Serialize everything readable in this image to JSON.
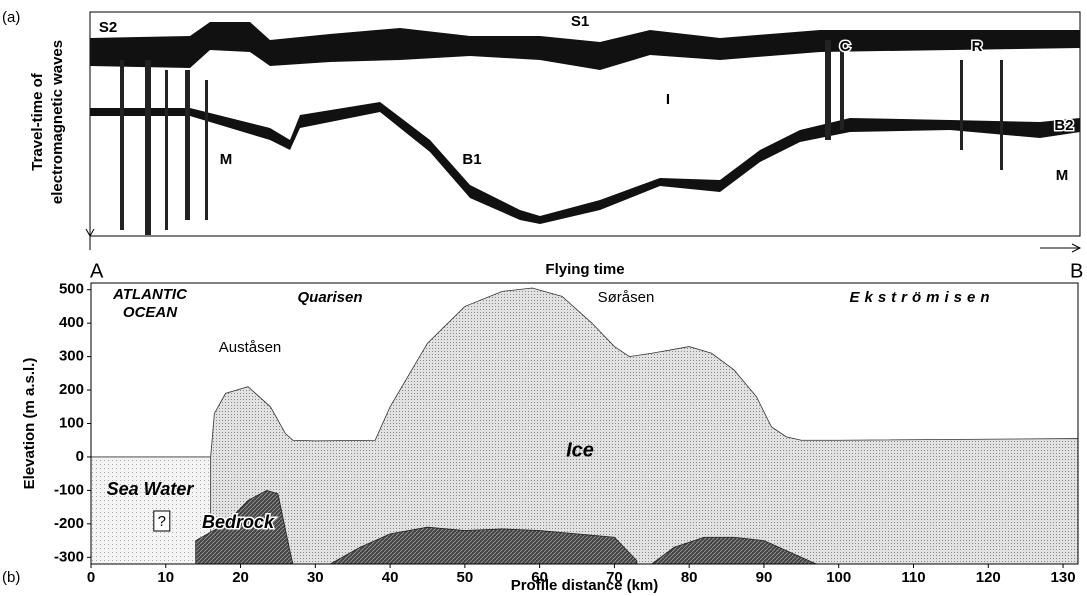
{
  "radargram": {
    "panel_label": "(a)",
    "y_label": [
      "Travel-time of",
      "electromagnetic waves"
    ],
    "x_label": "Flying time",
    "start": "A",
    "end": "B",
    "markers": [
      "S2",
      "S1",
      "C",
      "R",
      "I",
      "B1",
      "B2",
      "M",
      "M"
    ]
  },
  "chart_data": {
    "type": "area",
    "panel_label": "(b)",
    "x_label": "Profile distance (km)",
    "y_label": "Elevation (m a.s.l.)",
    "annotations": [
      "ATLANTIC",
      "OCEAN",
      "Auståsen",
      "Quarisen",
      "Søråsen",
      "Ekströmisen",
      "?"
    ],
    "series": [
      {
        "name": "Ice",
        "color": "#d4d4d4",
        "x": [
          16,
          16.5,
          18,
          21,
          24,
          26,
          27,
          30,
          38,
          40,
          45,
          50,
          55,
          59,
          63,
          67,
          70,
          72,
          75,
          80,
          83,
          86,
          89,
          91,
          93,
          95,
          100,
          132
        ],
        "values": [
          0,
          130,
          190,
          210,
          150,
          70,
          50,
          48,
          50,
          150,
          340,
          450,
          495,
          505,
          480,
          400,
          330,
          300,
          310,
          330,
          310,
          260,
          180,
          90,
          60,
          50,
          50,
          55
        ]
      },
      {
        "name": "Sea Water",
        "color": "#ececec",
        "x": [
          0,
          16
        ],
        "values": [
          0,
          0
        ]
      },
      {
        "name": "Bedrock",
        "color": "#5a5a5a",
        "x": [
          14,
          18,
          21,
          23.5,
          25,
          26.5,
          27,
          28,
          32,
          36,
          40,
          45,
          50,
          55,
          60,
          65,
          70,
          73,
          74,
          75,
          78,
          82,
          86,
          90,
          93,
          97
        ],
        "values": [
          -250,
          -200,
          -130,
          -100,
          -110,
          -270,
          -320,
          null,
          -320,
          -270,
          -230,
          -210,
          -220,
          -215,
          -220,
          -230,
          -240,
          -310,
          null,
          -320,
          -270,
          -240,
          -240,
          -250,
          -280,
          -320
        ]
      }
    ],
    "xlim": [
      0,
      132
    ],
    "xticks": [
      0,
      10,
      20,
      30,
      40,
      50,
      60,
      70,
      80,
      90,
      100,
      110,
      120,
      130
    ],
    "ylim": [
      -320,
      520
    ],
    "yticks": [
      -300,
      -200,
      -100,
      0,
      100,
      200,
      300,
      400,
      500
    ]
  }
}
